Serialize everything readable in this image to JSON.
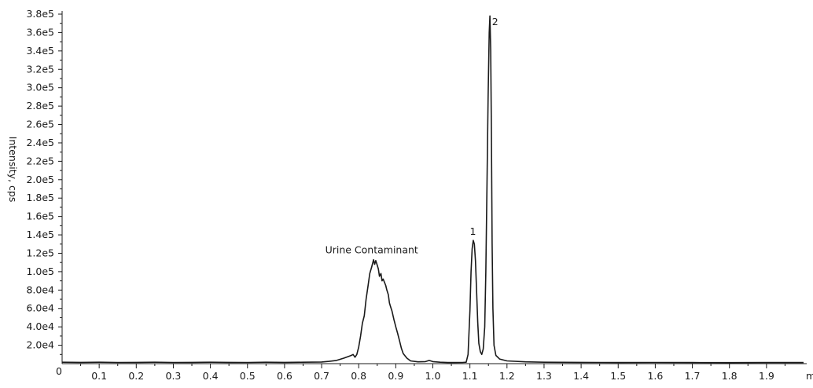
{
  "chart_data": {
    "type": "line",
    "title": "",
    "xlabel": "min",
    "ylabel": "Intensity, cps",
    "xlim": [
      0.0,
      2.0
    ],
    "ylim": [
      0,
      380000
    ],
    "grid": false,
    "legend": "none",
    "x_ticks": [
      {
        "value": 0.1,
        "label": "0.1"
      },
      {
        "value": 0.2,
        "label": "0.2"
      },
      {
        "value": 0.3,
        "label": "0.3"
      },
      {
        "value": 0.4,
        "label": "0.4"
      },
      {
        "value": 0.5,
        "label": "0.5"
      },
      {
        "value": 0.6,
        "label": "0.6"
      },
      {
        "value": 0.7,
        "label": "0.7"
      },
      {
        "value": 0.8,
        "label": "0.8"
      },
      {
        "value": 0.9,
        "label": "0.9"
      },
      {
        "value": 1.0,
        "label": "1.0"
      },
      {
        "value": 1.1,
        "label": "1.1"
      },
      {
        "value": 1.2,
        "label": "1.2"
      },
      {
        "value": 1.3,
        "label": "1.3"
      },
      {
        "value": 1.4,
        "label": "1.4"
      },
      {
        "value": 1.5,
        "label": "1.5"
      },
      {
        "value": 1.6,
        "label": "1.6"
      },
      {
        "value": 1.7,
        "label": "1.7"
      },
      {
        "value": 1.8,
        "label": "1.8"
      },
      {
        "value": 1.9,
        "label": "1.9"
      }
    ],
    "x_origin_label": "0",
    "y_ticks": [
      {
        "value": 20000,
        "label": "2.0e4"
      },
      {
        "value": 40000,
        "label": "4.0e4"
      },
      {
        "value": 60000,
        "label": "6.0e4"
      },
      {
        "value": 80000,
        "label": "8.0e4"
      },
      {
        "value": 100000,
        "label": "1.0e5"
      },
      {
        "value": 120000,
        "label": "1.2e5"
      },
      {
        "value": 140000,
        "label": "1.4e5"
      },
      {
        "value": 160000,
        "label": "1.6e5"
      },
      {
        "value": 180000,
        "label": "1.8e5"
      },
      {
        "value": 200000,
        "label": "2.0e5"
      },
      {
        "value": 220000,
        "label": "2.2e5"
      },
      {
        "value": 240000,
        "label": "2.4e5"
      },
      {
        "value": 260000,
        "label": "2.6e5"
      },
      {
        "value": 280000,
        "label": "2.8e5"
      },
      {
        "value": 300000,
        "label": "3.0e5"
      },
      {
        "value": 320000,
        "label": "3.2e5"
      },
      {
        "value": 340000,
        "label": "3.4e5"
      },
      {
        "value": 360000,
        "label": "3.6e5"
      },
      {
        "value": 380000,
        "label": "3.8e5"
      }
    ],
    "series": [
      {
        "color": "#1a1a1a",
        "x": [
          0.0,
          0.05,
          0.1,
          0.15,
          0.2,
          0.25,
          0.3,
          0.35,
          0.4,
          0.45,
          0.5,
          0.55,
          0.6,
          0.65,
          0.7,
          0.72,
          0.74,
          0.76,
          0.77,
          0.78,
          0.785,
          0.79,
          0.795,
          0.8,
          0.805,
          0.81,
          0.815,
          0.82,
          0.825,
          0.83,
          0.835,
          0.84,
          0.843,
          0.846,
          0.85,
          0.853,
          0.856,
          0.86,
          0.863,
          0.866,
          0.87,
          0.873,
          0.876,
          0.88,
          0.883,
          0.886,
          0.89,
          0.895,
          0.9,
          0.905,
          0.91,
          0.915,
          0.92,
          0.93,
          0.94,
          0.96,
          0.98,
          0.99,
          1.0,
          1.02,
          1.04,
          1.06,
          1.08,
          1.09,
          1.095,
          1.1,
          1.103,
          1.106,
          1.109,
          1.112,
          1.115,
          1.118,
          1.121,
          1.124,
          1.128,
          1.132,
          1.136,
          1.14,
          1.143,
          1.146,
          1.149,
          1.152,
          1.154,
          1.156,
          1.158,
          1.16,
          1.162,
          1.165,
          1.17,
          1.18,
          1.2,
          1.25,
          1.3,
          1.4,
          1.5,
          1.6,
          1.7,
          1.8,
          1.9,
          2.0
        ],
        "y": [
          1500,
          1400,
          1500,
          1300,
          1400,
          1500,
          1300,
          1400,
          1500,
          1400,
          1300,
          1500,
          1400,
          1500,
          1800,
          2500,
          3500,
          6000,
          7500,
          9000,
          10000,
          7000,
          10000,
          18000,
          30000,
          44000,
          52000,
          70000,
          84000,
          98000,
          105000,
          113000,
          108000,
          112000,
          107000,
          103000,
          95000,
          98000,
          90000,
          92000,
          88000,
          85000,
          80000,
          75000,
          66000,
          62000,
          57000,
          48000,
          40000,
          33000,
          25000,
          17000,
          11000,
          6000,
          3000,
          2000,
          2200,
          3500,
          2200,
          1500,
          1200,
          1200,
          1300,
          1500,
          10000,
          58000,
          100000,
          125000,
          134000,
          130000,
          112000,
          80000,
          45000,
          22000,
          13000,
          10000,
          16000,
          40000,
          100000,
          190000,
          290000,
          360000,
          378000,
          340000,
          250000,
          130000,
          60000,
          20000,
          9000,
          5000,
          3000,
          2000,
          1500,
          1400,
          1200,
          1300,
          1200,
          1100,
          1200,
          1200
        ]
      }
    ],
    "annotations": [
      {
        "text": "Urine Contaminant",
        "x": 0.835,
        "y": 120000
      },
      {
        "text": "1",
        "x": 1.108,
        "y": 140000
      },
      {
        "text": "2",
        "x": 1.168,
        "y": 368000
      }
    ]
  }
}
